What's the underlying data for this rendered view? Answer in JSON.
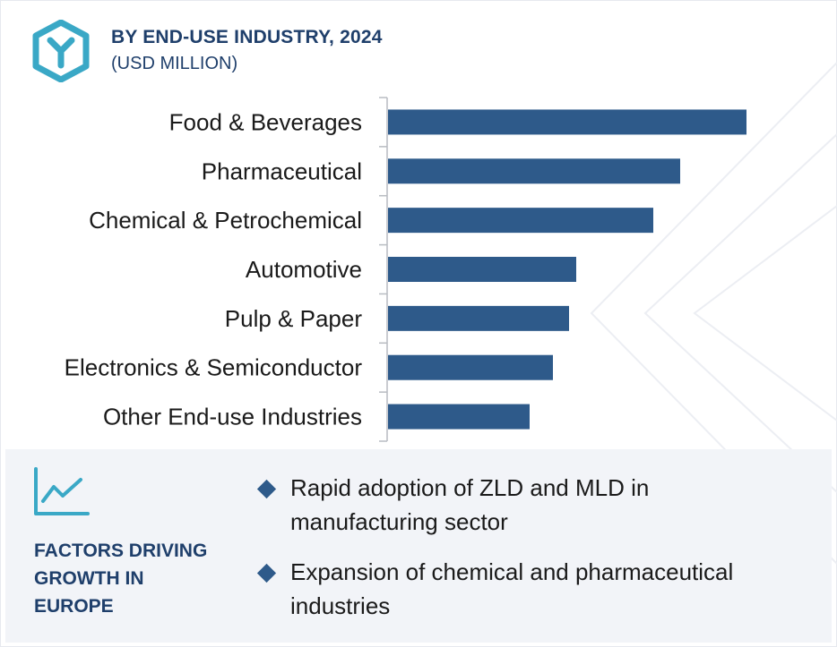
{
  "header": {
    "title": "BY END-USE INDUSTRY, 2024",
    "subtitle": "(USD MILLION)",
    "logo_icon": "y-hexagon-icon"
  },
  "chart_data": {
    "type": "bar",
    "orientation": "horizontal",
    "title": "BY END-USE INDUSTRY, 2024",
    "subtitle": "(USD MILLION)",
    "categories": [
      "Food & Beverages",
      "Pharmaceutical",
      "Chemical & Petrochemical",
      "Automotive",
      "Pulp & Paper",
      "Electronics & Semiconductor",
      "Other End-use Industries"
    ],
    "values": [
      100,
      81.5,
      74,
      52.5,
      50.5,
      46,
      39.5
    ],
    "value_axis_shown": false,
    "grid": false,
    "bar_color": "#2e5a8a"
  },
  "factors": {
    "icon": "trend-chart-icon",
    "heading": "FACTORS DRIVING\nGROWTH IN\nEUROPE",
    "items": [
      "Rapid adoption of ZLD and MLD in manufacturing sector",
      "Expansion of chemical and pharmaceutical industries"
    ]
  },
  "colors": {
    "accent": "#3aa8c6",
    "brand_text": "#1f3f6b",
    "bar": "#2e5a8a",
    "panel_bg": "#f2f4f8"
  }
}
